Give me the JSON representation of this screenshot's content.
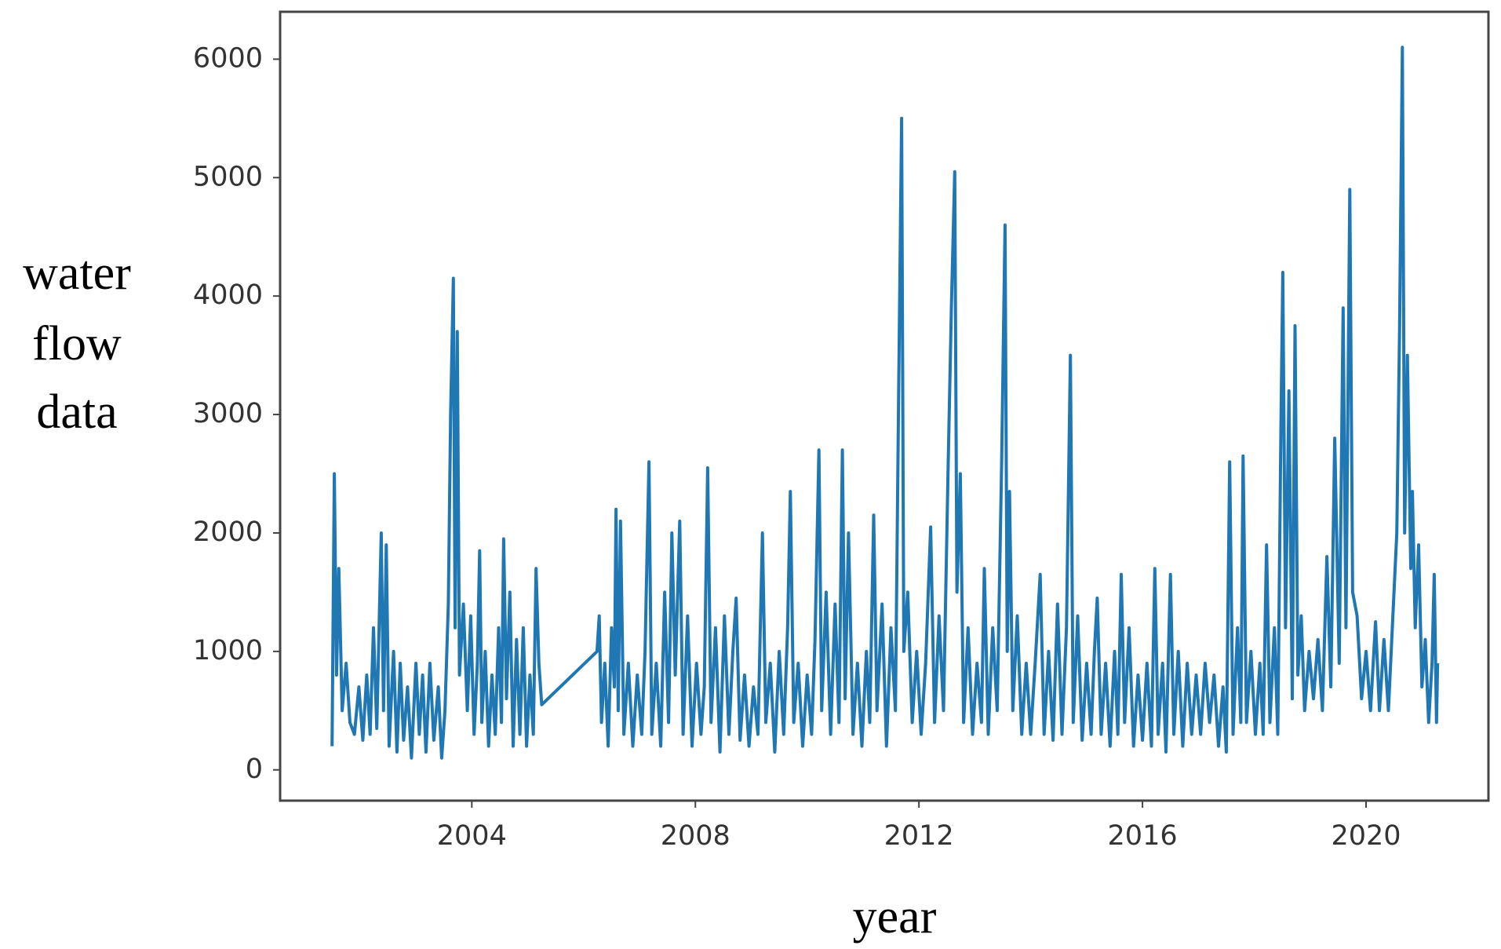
{
  "chart_data": {
    "type": "line",
    "ylabel": [
      "water",
      "flow",
      "data"
    ],
    "xlabel": "year",
    "x": [
      2001.5,
      2001.54,
      2001.58,
      2001.62,
      2001.68,
      2001.75,
      2001.82,
      2001.9,
      2001.98,
      2002.05,
      2002.12,
      2002.18,
      2002.24,
      2002.3,
      2002.38,
      2002.42,
      2002.47,
      2002.52,
      2002.6,
      2002.66,
      2002.72,
      2002.78,
      2002.85,
      2002.92,
      2003.0,
      2003.06,
      2003.12,
      2003.18,
      2003.25,
      2003.32,
      2003.4,
      2003.46,
      2003.52,
      2003.58,
      2003.62,
      2003.67,
      2003.7,
      2003.74,
      2003.78,
      2003.85,
      2003.92,
      2003.98,
      2004.04,
      2004.1,
      2004.14,
      2004.18,
      2004.24,
      2004.3,
      2004.36,
      2004.42,
      2004.48,
      2004.53,
      2004.57,
      2004.62,
      2004.68,
      2004.74,
      2004.8,
      2004.86,
      2004.92,
      2004.98,
      2005.04,
      2005.1,
      2005.15,
      2005.2,
      2005.25,
      2006.24,
      2006.28,
      2006.32,
      2006.38,
      2006.44,
      2006.5,
      2006.55,
      2006.58,
      2006.62,
      2006.66,
      2006.72,
      2006.8,
      2006.88,
      2006.96,
      2007.04,
      2007.1,
      2007.17,
      2007.22,
      2007.3,
      2007.38,
      2007.45,
      2007.52,
      2007.58,
      2007.64,
      2007.72,
      2007.78,
      2007.86,
      2007.94,
      2008.02,
      2008.1,
      2008.16,
      2008.22,
      2008.28,
      2008.36,
      2008.44,
      2008.52,
      2008.6,
      2008.67,
      2008.73,
      2008.8,
      2008.88,
      2008.96,
      2009.04,
      2009.12,
      2009.2,
      2009.26,
      2009.34,
      2009.42,
      2009.5,
      2009.58,
      2009.65,
      2009.7,
      2009.76,
      2009.84,
      2009.92,
      2010.0,
      2010.08,
      2010.14,
      2010.21,
      2010.26,
      2010.34,
      2010.42,
      2010.5,
      2010.57,
      2010.63,
      2010.68,
      2010.74,
      2010.82,
      2010.9,
      2010.98,
      2011.06,
      2011.12,
      2011.19,
      2011.25,
      2011.34,
      2011.42,
      2011.5,
      2011.58,
      2011.64,
      2011.69,
      2011.73,
      2011.8,
      2011.88,
      2011.96,
      2012.04,
      2012.12,
      2012.21,
      2012.28,
      2012.36,
      2012.44,
      2012.52,
      2012.58,
      2012.64,
      2012.68,
      2012.74,
      2012.8,
      2012.88,
      2012.96,
      2013.04,
      2013.12,
      2013.17,
      2013.24,
      2013.32,
      2013.4,
      2013.48,
      2013.54,
      2013.58,
      2013.62,
      2013.68,
      2013.76,
      2013.84,
      2013.92,
      2014.0,
      2014.08,
      2014.17,
      2014.24,
      2014.32,
      2014.4,
      2014.48,
      2014.56,
      2014.64,
      2014.71,
      2014.76,
      2014.84,
      2014.92,
      2015.0,
      2015.08,
      2015.14,
      2015.19,
      2015.26,
      2015.34,
      2015.42,
      2015.5,
      2015.56,
      2015.62,
      2015.68,
      2015.76,
      2015.84,
      2015.92,
      2016.0,
      2016.08,
      2016.16,
      2016.22,
      2016.28,
      2016.36,
      2016.42,
      2016.5,
      2016.56,
      2016.64,
      2016.72,
      2016.8,
      2016.88,
      2016.96,
      2017.04,
      2017.12,
      2017.2,
      2017.28,
      2017.36,
      2017.44,
      2017.5,
      2017.56,
      2017.62,
      2017.7,
      2017.76,
      2017.8,
      2017.86,
      2017.94,
      2018.02,
      2018.1,
      2018.16,
      2018.22,
      2018.28,
      2018.36,
      2018.42,
      2018.48,
      2018.51,
      2018.56,
      2018.62,
      2018.68,
      2018.73,
      2018.78,
      2018.84,
      2018.9,
      2018.98,
      2019.06,
      2019.14,
      2019.22,
      2019.3,
      2019.37,
      2019.44,
      2019.52,
      2019.59,
      2019.64,
      2019.71,
      2019.76,
      2019.84,
      2019.92,
      2020.0,
      2020.08,
      2020.17,
      2020.24,
      2020.32,
      2020.4,
      2020.48,
      2020.55,
      2020.6,
      2020.65,
      2020.69,
      2020.74,
      2020.8,
      2020.83,
      2020.88,
      2020.94,
      2021.0,
      2021.06,
      2021.12,
      2021.18,
      2021.22,
      2021.26,
      2021.28
    ],
    "series": [
      {
        "color": "#1f77b4",
        "values": [
          200,
          2500,
          800,
          1700,
          500,
          900,
          400,
          300,
          700,
          250,
          800,
          300,
          1200,
          350,
          2000,
          500,
          1900,
          200,
          1000,
          150,
          900,
          250,
          700,
          100,
          900,
          300,
          800,
          150,
          900,
          250,
          700,
          100,
          500,
          1400,
          3000,
          4150,
          1200,
          3700,
          800,
          1400,
          500,
          1300,
          300,
          900,
          1850,
          400,
          1000,
          200,
          800,
          300,
          1200,
          400,
          1950,
          600,
          1500,
          200,
          1100,
          300,
          1200,
          200,
          800,
          300,
          1700,
          900,
          550,
          1000,
          1300,
          400,
          900,
          200,
          1200,
          700,
          2200,
          500,
          2100,
          300,
          900,
          200,
          800,
          300,
          1000,
          2600,
          300,
          900,
          200,
          1500,
          400,
          2000,
          800,
          2100,
          300,
          1300,
          200,
          900,
          300,
          700,
          2550,
          400,
          1200,
          150,
          1300,
          300,
          1000,
          1450,
          250,
          800,
          200,
          700,
          300,
          2000,
          400,
          900,
          150,
          1000,
          300,
          1200,
          2350,
          400,
          900,
          200,
          800,
          300,
          1100,
          2700,
          500,
          1500,
          300,
          1400,
          400,
          2700,
          600,
          2000,
          300,
          900,
          200,
          1000,
          400,
          2150,
          500,
          1400,
          200,
          1200,
          500,
          3300,
          5500,
          1000,
          1500,
          400,
          1000,
          300,
          900,
          2050,
          400,
          1300,
          500,
          2500,
          3900,
          5050,
          1500,
          2500,
          400,
          1200,
          300,
          900,
          400,
          1700,
          300,
          1200,
          500,
          2600,
          4600,
          1000,
          2350,
          500,
          1300,
          300,
          900,
          300,
          900,
          1650,
          300,
          1000,
          250,
          1400,
          300,
          1200,
          3500,
          400,
          1300,
          250,
          900,
          300,
          1000,
          1450,
          300,
          900,
          200,
          1000,
          300,
          1650,
          400,
          1200,
          200,
          800,
          250,
          900,
          200,
          1700,
          300,
          900,
          150,
          1650,
          300,
          1000,
          200,
          900,
          300,
          800,
          300,
          900,
          400,
          800,
          200,
          700,
          150,
          2600,
          300,
          1200,
          400,
          2650,
          400,
          1000,
          300,
          900,
          300,
          1900,
          400,
          1200,
          300,
          3000,
          4200,
          1200,
          3200,
          600,
          3750,
          800,
          1300,
          500,
          1000,
          600,
          1100,
          500,
          1800,
          700,
          2800,
          900,
          3900,
          1200,
          4900,
          1500,
          1300,
          600,
          1000,
          500,
          1250,
          500,
          1100,
          500,
          1300,
          2000,
          3700,
          6100,
          2000,
          3500,
          1700,
          2350,
          1200,
          1900,
          700,
          1100,
          400,
          900,
          1650,
          400,
          900
        ]
      }
    ],
    "xlim": [
      2000.57,
      2022.19
    ],
    "xticks": [
      2004,
      2008,
      2012,
      2016,
      2020
    ],
    "ylim": [
      -260,
      6400
    ],
    "yticks": [
      0,
      1000,
      2000,
      3000,
      4000,
      5000,
      6000
    ]
  }
}
